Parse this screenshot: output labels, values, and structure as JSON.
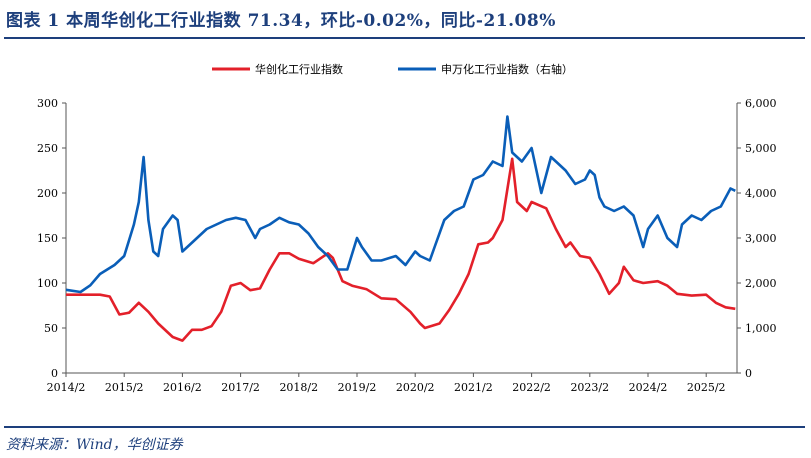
{
  "header": {
    "title": "图表 1   本周华创化工行业指数 71.34，环比-0.02%，同比-21.08%"
  },
  "footer": {
    "source": "资料来源：Wind，华创证券"
  },
  "chart_data": {
    "type": "line",
    "title": "",
    "legend_position": "top",
    "grid": false,
    "x_ticks": [
      "2014/2",
      "2015/2",
      "2016/2",
      "2017/2",
      "2018/2",
      "2019/2",
      "2020/2",
      "2021/2",
      "2022/2",
      "2023/2",
      "2024/2",
      "2025/2"
    ],
    "y_left": {
      "ylim": [
        0,
        300
      ],
      "ticks": [
        "0",
        "50",
        "100",
        "150",
        "200",
        "250",
        "300"
      ]
    },
    "y_right": {
      "ylim": [
        0,
        6000
      ],
      "ticks": [
        "0",
        "1,000",
        "2,000",
        "3,000",
        "4,000",
        "5,000",
        "6,000"
      ]
    },
    "series": [
      {
        "name": "华创化工行业指数",
        "axis": "left",
        "color": "#e3202a",
        "points": [
          [
            "2014-02",
            87
          ],
          [
            "2014-09",
            87
          ],
          [
            "2014-11",
            85
          ],
          [
            "2015-01",
            65
          ],
          [
            "2015-03",
            67
          ],
          [
            "2015-05",
            78
          ],
          [
            "2015-07",
            68
          ],
          [
            "2015-09",
            55
          ],
          [
            "2015-12",
            40
          ],
          [
            "2016-02",
            36
          ],
          [
            "2016-04",
            48
          ],
          [
            "2016-06",
            48
          ],
          [
            "2016-08",
            52
          ],
          [
            "2016-10",
            68
          ],
          [
            "2016-12",
            97
          ],
          [
            "2017-02",
            100
          ],
          [
            "2017-04",
            92
          ],
          [
            "2017-06",
            94
          ],
          [
            "2017-08",
            115
          ],
          [
            "2017-10",
            133
          ],
          [
            "2017-12",
            133
          ],
          [
            "2018-02",
            127
          ],
          [
            "2018-05",
            122
          ],
          [
            "2018-08",
            133
          ],
          [
            "2018-09",
            128
          ],
          [
            "2018-11",
            102
          ],
          [
            "2019-01",
            97
          ],
          [
            "2019-04",
            93
          ],
          [
            "2019-07",
            83
          ],
          [
            "2019-10",
            82
          ],
          [
            "2020-01",
            68
          ],
          [
            "2020-03",
            55
          ],
          [
            "2020-04",
            50
          ],
          [
            "2020-07",
            55
          ],
          [
            "2020-09",
            70
          ],
          [
            "2020-11",
            88
          ],
          [
            "2021-01",
            110
          ],
          [
            "2021-03",
            143
          ],
          [
            "2021-05",
            145
          ],
          [
            "2021-06",
            150
          ],
          [
            "2021-08",
            170
          ],
          [
            "2021-10",
            238
          ],
          [
            "2021-11",
            190
          ],
          [
            "2022-01",
            180
          ],
          [
            "2022-02",
            190
          ],
          [
            "2022-05",
            183
          ],
          [
            "2022-07",
            160
          ],
          [
            "2022-09",
            140
          ],
          [
            "2022-10",
            145
          ],
          [
            "2022-12",
            130
          ],
          [
            "2023-02",
            128
          ],
          [
            "2023-04",
            110
          ],
          [
            "2023-06",
            88
          ],
          [
            "2023-08",
            100
          ],
          [
            "2023-09",
            118
          ],
          [
            "2023-11",
            103
          ],
          [
            "2024-01",
            100
          ],
          [
            "2024-04",
            102
          ],
          [
            "2024-06",
            97
          ],
          [
            "2024-08",
            88
          ],
          [
            "2024-11",
            86
          ],
          [
            "2025-02",
            87
          ],
          [
            "2025-04",
            78
          ],
          [
            "2025-06",
            73
          ],
          [
            "2025-08",
            71.34
          ]
        ]
      },
      {
        "name": "申万化工行业指数（右轴）",
        "axis": "right",
        "color": "#0a5eb8",
        "points": [
          [
            "2014-02",
            1850
          ],
          [
            "2014-05",
            1800
          ],
          [
            "2014-07",
            1950
          ],
          [
            "2014-09",
            2200
          ],
          [
            "2014-12",
            2400
          ],
          [
            "2015-02",
            2600
          ],
          [
            "2015-04",
            3300
          ],
          [
            "2015-05",
            3800
          ],
          [
            "2015-06",
            4800
          ],
          [
            "2015-07",
            3400
          ],
          [
            "2015-08",
            2700
          ],
          [
            "2015-09",
            2600
          ],
          [
            "2015-10",
            3200
          ],
          [
            "2015-12",
            3500
          ],
          [
            "2016-01",
            3400
          ],
          [
            "2016-02",
            2700
          ],
          [
            "2016-03",
            2800
          ],
          [
            "2016-05",
            3000
          ],
          [
            "2016-07",
            3200
          ],
          [
            "2016-09",
            3300
          ],
          [
            "2016-11",
            3400
          ],
          [
            "2017-01",
            3450
          ],
          [
            "2017-03",
            3400
          ],
          [
            "2017-05",
            3000
          ],
          [
            "2017-06",
            3200
          ],
          [
            "2017-08",
            3300
          ],
          [
            "2017-10",
            3450
          ],
          [
            "2017-12",
            3350
          ],
          [
            "2018-02",
            3300
          ],
          [
            "2018-04",
            3100
          ],
          [
            "2018-06",
            2800
          ],
          [
            "2018-08",
            2600
          ],
          [
            "2018-10",
            2300
          ],
          [
            "2018-12",
            2300
          ],
          [
            "2019-02",
            3000
          ],
          [
            "2019-03",
            2800
          ],
          [
            "2019-05",
            2500
          ],
          [
            "2019-07",
            2500
          ],
          [
            "2019-10",
            2600
          ],
          [
            "2019-12",
            2400
          ],
          [
            "2020-02",
            2700
          ],
          [
            "2020-03",
            2600
          ],
          [
            "2020-05",
            2500
          ],
          [
            "2020-06",
            2800
          ],
          [
            "2020-08",
            3400
          ],
          [
            "2020-10",
            3600
          ],
          [
            "2020-12",
            3700
          ],
          [
            "2021-02",
            4300
          ],
          [
            "2021-04",
            4400
          ],
          [
            "2021-06",
            4700
          ],
          [
            "2021-08",
            4600
          ],
          [
            "2021-09",
            5700
          ],
          [
            "2021-10",
            4900
          ],
          [
            "2021-12",
            4700
          ],
          [
            "2022-02",
            5000
          ],
          [
            "2022-04",
            4000
          ],
          [
            "2022-06",
            4800
          ],
          [
            "2022-07",
            4700
          ],
          [
            "2022-09",
            4500
          ],
          [
            "2022-11",
            4200
          ],
          [
            "2023-01",
            4300
          ],
          [
            "2023-02",
            4500
          ],
          [
            "2023-03",
            4400
          ],
          [
            "2023-04",
            3900
          ],
          [
            "2023-05",
            3700
          ],
          [
            "2023-07",
            3600
          ],
          [
            "2023-09",
            3700
          ],
          [
            "2023-11",
            3500
          ],
          [
            "2024-01",
            2800
          ],
          [
            "2024-02",
            3200
          ],
          [
            "2024-04",
            3500
          ],
          [
            "2024-06",
            3000
          ],
          [
            "2024-08",
            2800
          ],
          [
            "2024-09",
            3300
          ],
          [
            "2024-11",
            3500
          ],
          [
            "2025-01",
            3400
          ],
          [
            "2025-03",
            3600
          ],
          [
            "2025-05",
            3700
          ],
          [
            "2025-07",
            4100
          ],
          [
            "2025-08",
            4050
          ]
        ]
      }
    ]
  }
}
